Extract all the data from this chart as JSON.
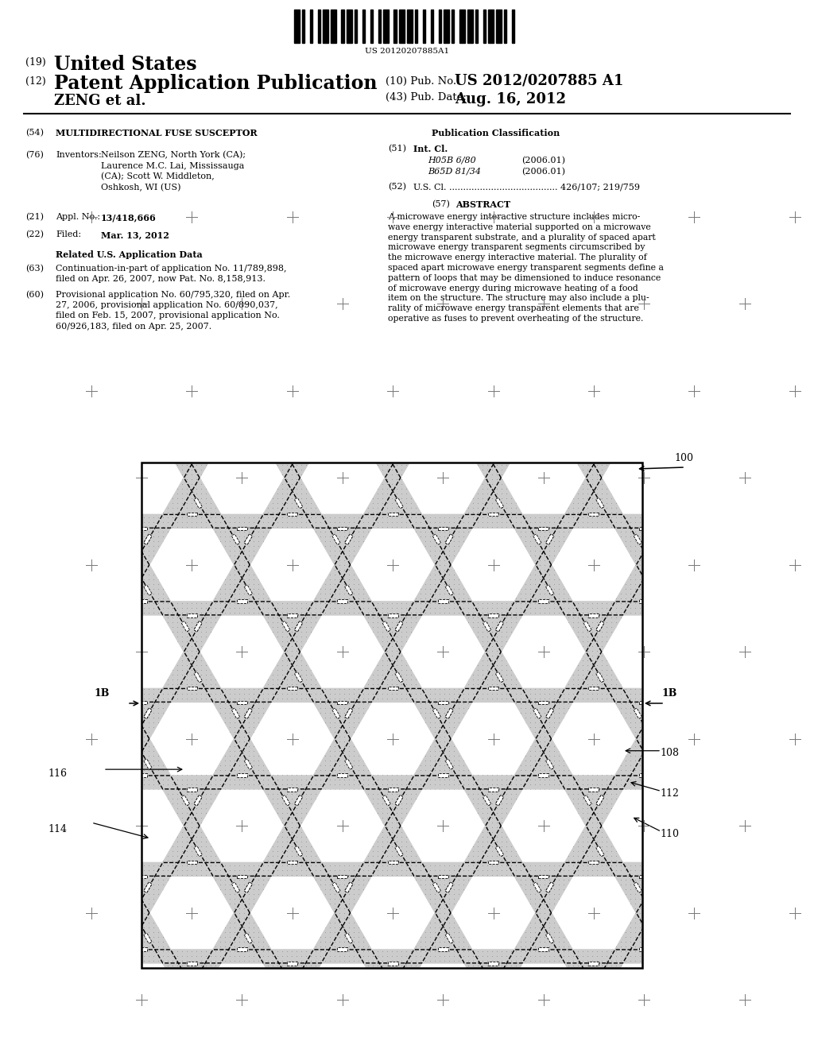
{
  "page_width": 10.24,
  "page_height": 13.2,
  "bg_color": "#ffffff",
  "title_19": "(19)",
  "title_us": "United States",
  "title_12": "(12)",
  "title_pat": "Patent Application Publication",
  "title_zeng": "ZENG et al.",
  "pub_no_label": "(10) Pub. No.:",
  "pub_no": "US 2012/0207885 A1",
  "pub_date_label": "(43) Pub. Date:",
  "pub_date": "Aug. 16, 2012",
  "field54_label": "(54)",
  "field54": "MULTIDIRECTIONAL FUSE SUSCEPTOR",
  "field76_label": "(76)",
  "field76_title": "Inventors:",
  "field76_text": "Neilson ZENG, North York (CA);\nLaurence M.C. Lai, Mississauga\n(CA); Scott W. Middleton,\nOshkosh, WI (US)",
  "field21_label": "(21)",
  "field21_title": "Appl. No.:",
  "field21_value": "13/418,666",
  "field22_label": "(22)",
  "field22_title": "Filed:",
  "field22_value": "Mar. 13, 2012",
  "related_title": "Related U.S. Application Data",
  "field63_label": "(63)",
  "field63_text": "Continuation-in-part of application No. 11/789,898,\nfiled on Apr. 26, 2007, now Pat. No. 8,158,913.",
  "field60_label": "(60)",
  "field60_text": "Provisional application No. 60/795,320, filed on Apr.\n27, 2006, provisional application No. 60/890,037,\nfiled on Feb. 15, 2007, provisional application No.\n60/926,183, filed on Apr. 25, 2007.",
  "pub_class_title": "Publication Classification",
  "field51_label": "(51)",
  "field51_title": "Int. Cl.",
  "field51_h05b": "H05B 6/80",
  "field51_h05b_date": "(2006.01)",
  "field51_b65d": "B65D 81/34",
  "field51_b65d_date": "(2006.01)",
  "field52_label": "(52)",
  "field52_text": "U.S. Cl. ....................................... 426/107; 219/759",
  "field57_label": "(57)",
  "field57_title": "ABSTRACT",
  "field57_text": "A microwave energy interactive structure includes micro-\nwave energy interactive material supported on a microwave\nenergy transparent substrate, and a plurality of spaced apart\nmicrowave energy transparent segments circumscribed by\nthe microwave energy interactive material. The plurality of\nspaced apart microwave energy transparent segments define a\npattern of loops that may be dimensioned to induce resonance\nof microwave energy during microwave heating of a food\nitem on the structure. The structure may also include a plu-\nrality of microwave energy transparent elements that are\noperative as fuses to prevent overheating of the structure.",
  "diagram_label": "100",
  "label_1b_left": "1B",
  "label_1b_right": "1B",
  "label_116": "116",
  "label_114": "114",
  "label_108": "108",
  "label_112": "112",
  "label_110": "110",
  "barcode_text": "US 20120207885A1"
}
